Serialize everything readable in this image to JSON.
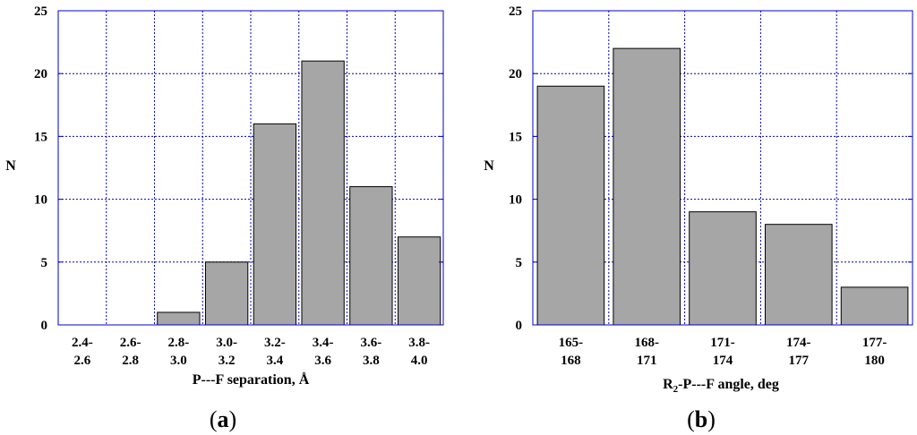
{
  "colors": {
    "bar": "#a6a6a6",
    "grid": "#0000cc",
    "frame": "#0000cc"
  },
  "chart_data": [
    {
      "type": "bar",
      "panel_label": "a",
      "title": "",
      "xlabel": "P---F separation, Å",
      "ylabel": "N",
      "ylim": [
        0,
        25
      ],
      "yticks": [
        0,
        5,
        10,
        15,
        20,
        25
      ],
      "categories": [
        [
          "2.4-",
          "2.6"
        ],
        [
          "2.6-",
          "2.8"
        ],
        [
          "2.8-",
          "3.0"
        ],
        [
          "3.0-",
          "3.2"
        ],
        [
          "3.2-",
          "3.4"
        ],
        [
          "3.4-",
          "3.6"
        ],
        [
          "3.6-",
          "3.8"
        ],
        [
          "3.8-",
          "4.0"
        ]
      ],
      "values": [
        0,
        0,
        1,
        5,
        16,
        21,
        11,
        7
      ],
      "grid": true
    },
    {
      "type": "bar",
      "panel_label": "b",
      "title": "",
      "xlabel_main": "R",
      "xlabel_sub": "2",
      "xlabel_rest": "-P---F angle, deg",
      "ylabel": "N",
      "ylim": [
        0,
        25
      ],
      "yticks": [
        0,
        5,
        10,
        15,
        20,
        25
      ],
      "categories": [
        [
          "165-",
          "168"
        ],
        [
          "168-",
          "171"
        ],
        [
          "171-",
          "174"
        ],
        [
          "174-",
          "177"
        ],
        [
          "177-",
          "180"
        ]
      ],
      "values": [
        19,
        22,
        9,
        8,
        3
      ],
      "grid": true
    }
  ]
}
